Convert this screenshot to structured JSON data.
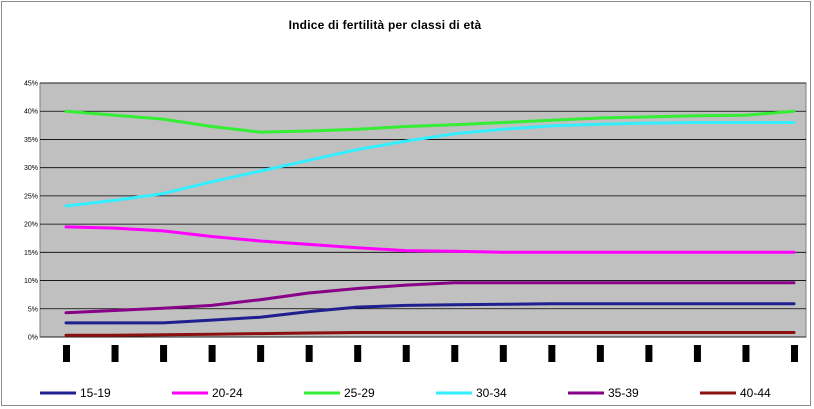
{
  "chart_data": {
    "type": "line",
    "title": "Indice di fertilità per classi di età",
    "xlabel": "",
    "ylabel": "",
    "ylim": [
      0,
      45
    ],
    "y_ticks": [
      "0%",
      "5%",
      "10%",
      "15%",
      "20%",
      "25%",
      "30%",
      "35%",
      "40%",
      "45%"
    ],
    "x_points": 16,
    "grid": true,
    "legend_position": "bottom",
    "series": [
      {
        "name": "15-19",
        "color": "#1f1f8f",
        "values": [
          2.5,
          2.5,
          2.5,
          3,
          3.5,
          4.5,
          5.3,
          5.6,
          5.7,
          5.8,
          5.9,
          5.9,
          5.9,
          5.9,
          5.9,
          5.9
        ]
      },
      {
        "name": "20-24",
        "color": "#ff00ff",
        "values": [
          19.5,
          19.3,
          18.8,
          17.8,
          17,
          16.4,
          15.8,
          15.3,
          15.2,
          15,
          15,
          15,
          15,
          15,
          15,
          15
        ]
      },
      {
        "name": "25-29",
        "color": "#33ee33",
        "values": [
          40,
          39.3,
          38.6,
          37.3,
          36.3,
          36.5,
          36.8,
          37.3,
          37.6,
          38,
          38.4,
          38.8,
          39,
          39.2,
          39.3,
          40
        ]
      },
      {
        "name": "30-34",
        "color": "#33eeff",
        "values": [
          23.2,
          24.2,
          25.4,
          27.5,
          29.4,
          31.3,
          33.2,
          34.7,
          36,
          36.8,
          37.4,
          37.7,
          37.9,
          38,
          38,
          38
        ]
      },
      {
        "name": "35-39",
        "color": "#880088",
        "values": [
          4.3,
          4.7,
          5.1,
          5.6,
          6.6,
          7.8,
          8.6,
          9.2,
          9.6,
          9.6,
          9.6,
          9.6,
          9.6,
          9.6,
          9.6,
          9.6
        ]
      },
      {
        "name": "40-44",
        "color": "#8b1010",
        "values": [
          0.3,
          0.3,
          0.4,
          0.5,
          0.6,
          0.7,
          0.8,
          0.8,
          0.8,
          0.8,
          0.8,
          0.8,
          0.8,
          0.8,
          0.8,
          0.8
        ]
      }
    ]
  }
}
